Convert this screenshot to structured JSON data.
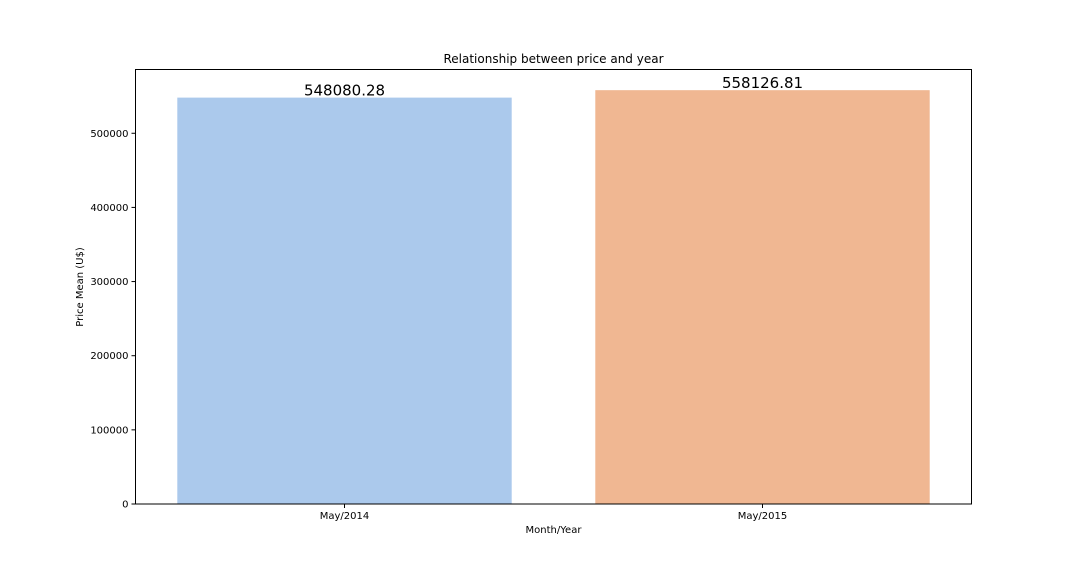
{
  "chart_data": {
    "type": "bar",
    "title": "Relationship between price and year",
    "xlabel": "Month/Year",
    "ylabel": "Price Mean (U$)",
    "categories": [
      "May/2014",
      "May/2015"
    ],
    "values": [
      548080.28,
      558126.81
    ],
    "data_labels": [
      "548080.28",
      "558126.81"
    ],
    "bar_colors": [
      "#abc9ec",
      "#f0b792"
    ],
    "ylim": [
      0,
      586000
    ],
    "yticks": [
      0,
      100000,
      200000,
      300000,
      400000,
      500000
    ],
    "ytick_labels": [
      "0",
      "100000",
      "200000",
      "300000",
      "400000",
      "500000"
    ],
    "grid": false,
    "legend": "none"
  }
}
